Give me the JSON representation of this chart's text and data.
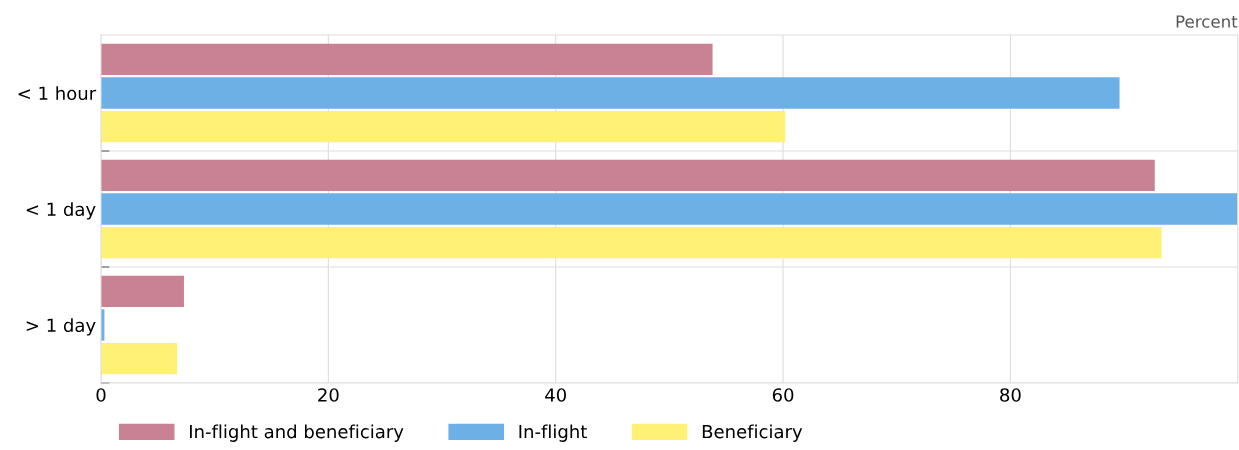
{
  "chart_data": {
    "type": "bar",
    "orientation": "horizontal",
    "categories": [
      "< 1 hour",
      "< 1 day",
      "> 1 day"
    ],
    "series": [
      {
        "name": "In-flight and beneficiary",
        "color": "#c98294",
        "values": [
          53.8,
          92.7,
          7.3
        ]
      },
      {
        "name": "In-flight",
        "color": "#6cb0e5",
        "values": [
          89.6,
          100,
          0.3
        ]
      },
      {
        "name": "Beneficiary",
        "color": "#fff176",
        "values": [
          60.2,
          93.3,
          6.7
        ]
      }
    ],
    "xlim": [
      0,
      100
    ],
    "xticks": [
      0,
      20,
      40,
      60,
      80
    ],
    "annotations": [
      "Percent"
    ],
    "grid": "x",
    "legend": "bottom"
  }
}
